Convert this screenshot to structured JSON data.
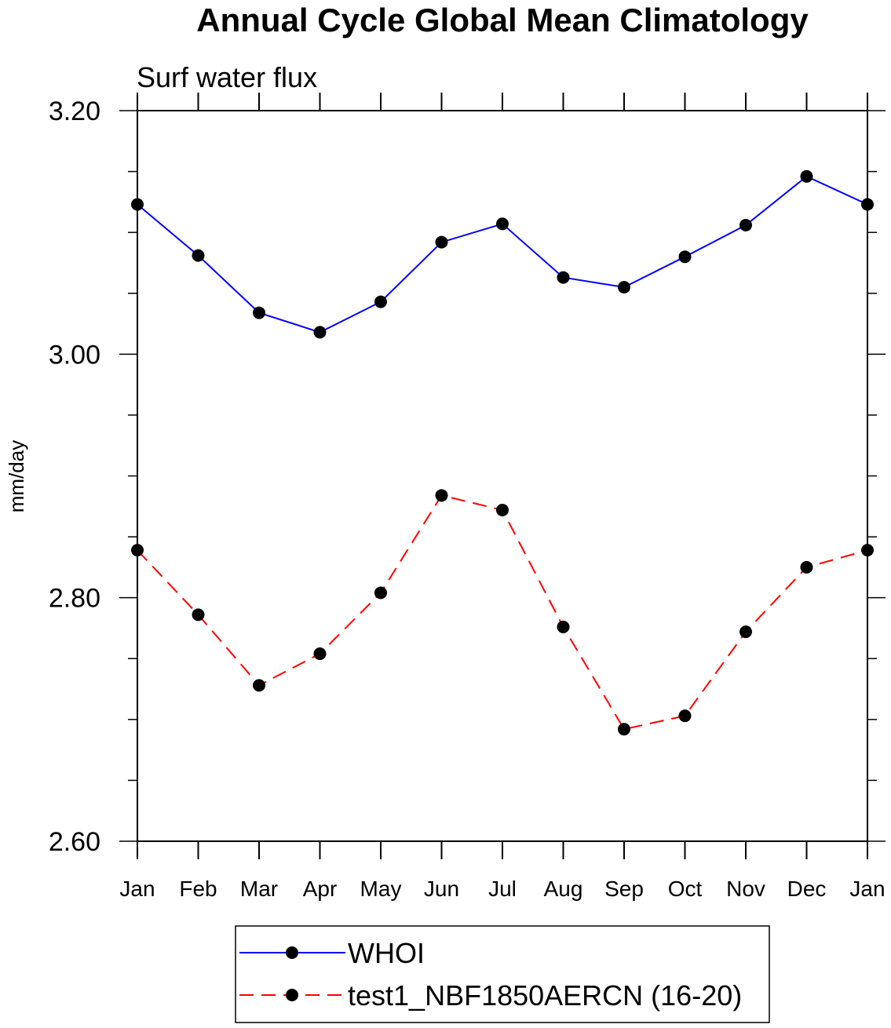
{
  "chart_data": {
    "type": "line",
    "title": "Annual Cycle Global Mean Climatology",
    "subtitle": "Surf water flux",
    "xlabel": "",
    "ylabel": "mm/day",
    "categories": [
      "Jan",
      "Feb",
      "Mar",
      "Apr",
      "May",
      "Jun",
      "Jul",
      "Aug",
      "Sep",
      "Oct",
      "Nov",
      "Dec",
      "Jan"
    ],
    "ylim": [
      2.6,
      3.2
    ],
    "yticks": [
      2.6,
      2.8,
      3.0,
      3.2
    ],
    "ytick_labels": [
      "2.60",
      "2.80",
      "3.00",
      "3.20"
    ],
    "yminor_step": 0.05,
    "grid": false,
    "legend_position": "bottom-center",
    "series": [
      {
        "name": "WHOI",
        "color": "#0000ff",
        "dash": "solid",
        "values": [
          3.123,
          3.081,
          3.034,
          3.018,
          3.043,
          3.092,
          3.107,
          3.063,
          3.055,
          3.08,
          3.106,
          3.146,
          3.123
        ]
      },
      {
        "name": "test1_NBF1850AERCN (16-20)",
        "color": "#ff0000",
        "dash": "dashed",
        "values": [
          2.839,
          2.786,
          2.728,
          2.754,
          2.804,
          2.884,
          2.872,
          2.776,
          2.692,
          2.703,
          2.772,
          2.825,
          2.839
        ]
      }
    ]
  }
}
